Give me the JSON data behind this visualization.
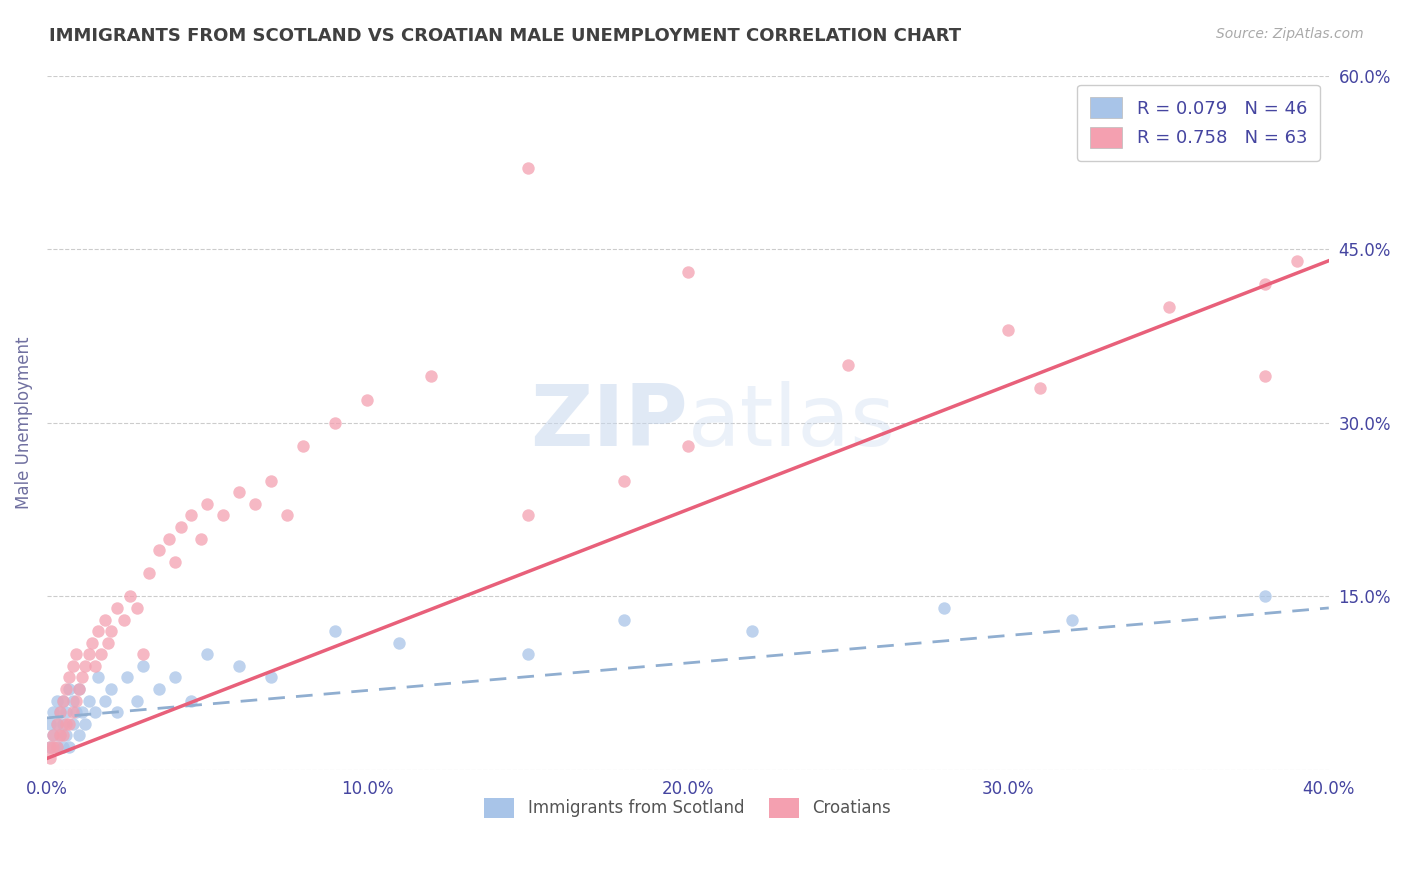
{
  "title": "IMMIGRANTS FROM SCOTLAND VS CROATIAN MALE UNEMPLOYMENT CORRELATION CHART",
  "source_text": "Source: ZipAtlas.com",
  "ylabel": "Male Unemployment",
  "xlim": [
    0.0,
    0.4
  ],
  "ylim": [
    0.0,
    0.6
  ],
  "xticks": [
    0.0,
    0.1,
    0.2,
    0.3,
    0.4
  ],
  "xtick_labels": [
    "0.0%",
    "10.0%",
    "20.0%",
    "30.0%",
    "40.0%"
  ],
  "yticks": [
    0.0,
    0.15,
    0.3,
    0.45,
    0.6
  ],
  "ytick_labels": [
    "",
    "15.0%",
    "30.0%",
    "45.0%",
    "60.0%"
  ],
  "legend_r1": "R = 0.079   N = 46",
  "legend_r2": "R = 0.758   N = 63",
  "legend_label1": "Immigrants from Scotland",
  "legend_label2": "Croatians",
  "scatter_color1": "#a8c4e8",
  "scatter_color2": "#f4a0b0",
  "line_color1": "#90aed0",
  "line_color2": "#e8607a",
  "background_color": "#ffffff",
  "grid_color": "#cccccc",
  "title_color": "#404040",
  "axis_label_color": "#7070a0",
  "tick_label_color": "#4545a0",
  "watermark_color": "#c8d8ee",
  "scotland_x": [
    0.001,
    0.001,
    0.002,
    0.002,
    0.003,
    0.003,
    0.003,
    0.004,
    0.004,
    0.005,
    0.005,
    0.005,
    0.006,
    0.006,
    0.007,
    0.007,
    0.008,
    0.008,
    0.009,
    0.01,
    0.01,
    0.011,
    0.012,
    0.013,
    0.015,
    0.016,
    0.018,
    0.02,
    0.022,
    0.025,
    0.028,
    0.03,
    0.035,
    0.04,
    0.045,
    0.05,
    0.06,
    0.07,
    0.09,
    0.11,
    0.15,
    0.18,
    0.22,
    0.28,
    0.32,
    0.38
  ],
  "scotland_y": [
    0.02,
    0.04,
    0.03,
    0.05,
    0.02,
    0.04,
    0.06,
    0.03,
    0.05,
    0.02,
    0.04,
    0.06,
    0.03,
    0.05,
    0.02,
    0.07,
    0.04,
    0.06,
    0.05,
    0.03,
    0.07,
    0.05,
    0.04,
    0.06,
    0.05,
    0.08,
    0.06,
    0.07,
    0.05,
    0.08,
    0.06,
    0.09,
    0.07,
    0.08,
    0.06,
    0.1,
    0.09,
    0.08,
    0.12,
    0.11,
    0.1,
    0.13,
    0.12,
    0.14,
    0.13,
    0.15
  ],
  "croatian_x": [
    0.001,
    0.001,
    0.002,
    0.002,
    0.003,
    0.003,
    0.004,
    0.004,
    0.005,
    0.005,
    0.006,
    0.006,
    0.007,
    0.007,
    0.008,
    0.008,
    0.009,
    0.009,
    0.01,
    0.011,
    0.012,
    0.013,
    0.014,
    0.015,
    0.016,
    0.017,
    0.018,
    0.019,
    0.02,
    0.022,
    0.024,
    0.026,
    0.028,
    0.03,
    0.032,
    0.035,
    0.038,
    0.04,
    0.042,
    0.045,
    0.048,
    0.05,
    0.055,
    0.06,
    0.065,
    0.07,
    0.075,
    0.08,
    0.09,
    0.1,
    0.12,
    0.15,
    0.18,
    0.2,
    0.25,
    0.3,
    0.35,
    0.38,
    0.39,
    0.15,
    0.2,
    0.38,
    0.31
  ],
  "croatian_y": [
    0.01,
    0.02,
    0.02,
    0.03,
    0.02,
    0.04,
    0.03,
    0.05,
    0.03,
    0.06,
    0.04,
    0.07,
    0.04,
    0.08,
    0.05,
    0.09,
    0.06,
    0.1,
    0.07,
    0.08,
    0.09,
    0.1,
    0.11,
    0.09,
    0.12,
    0.1,
    0.13,
    0.11,
    0.12,
    0.14,
    0.13,
    0.15,
    0.14,
    0.1,
    0.17,
    0.19,
    0.2,
    0.18,
    0.21,
    0.22,
    0.2,
    0.23,
    0.22,
    0.24,
    0.23,
    0.25,
    0.22,
    0.28,
    0.3,
    0.32,
    0.34,
    0.22,
    0.25,
    0.28,
    0.35,
    0.38,
    0.4,
    0.42,
    0.44,
    0.52,
    0.43,
    0.34,
    0.33
  ],
  "croatian_trend_x0": 0.0,
  "croatian_trend_y0": 0.01,
  "croatian_trend_x1": 0.4,
  "croatian_trend_y1": 0.44,
  "scotland_trend_x0": 0.0,
  "scotland_trend_y0": 0.045,
  "scotland_trend_x1": 0.4,
  "scotland_trend_y1": 0.14
}
